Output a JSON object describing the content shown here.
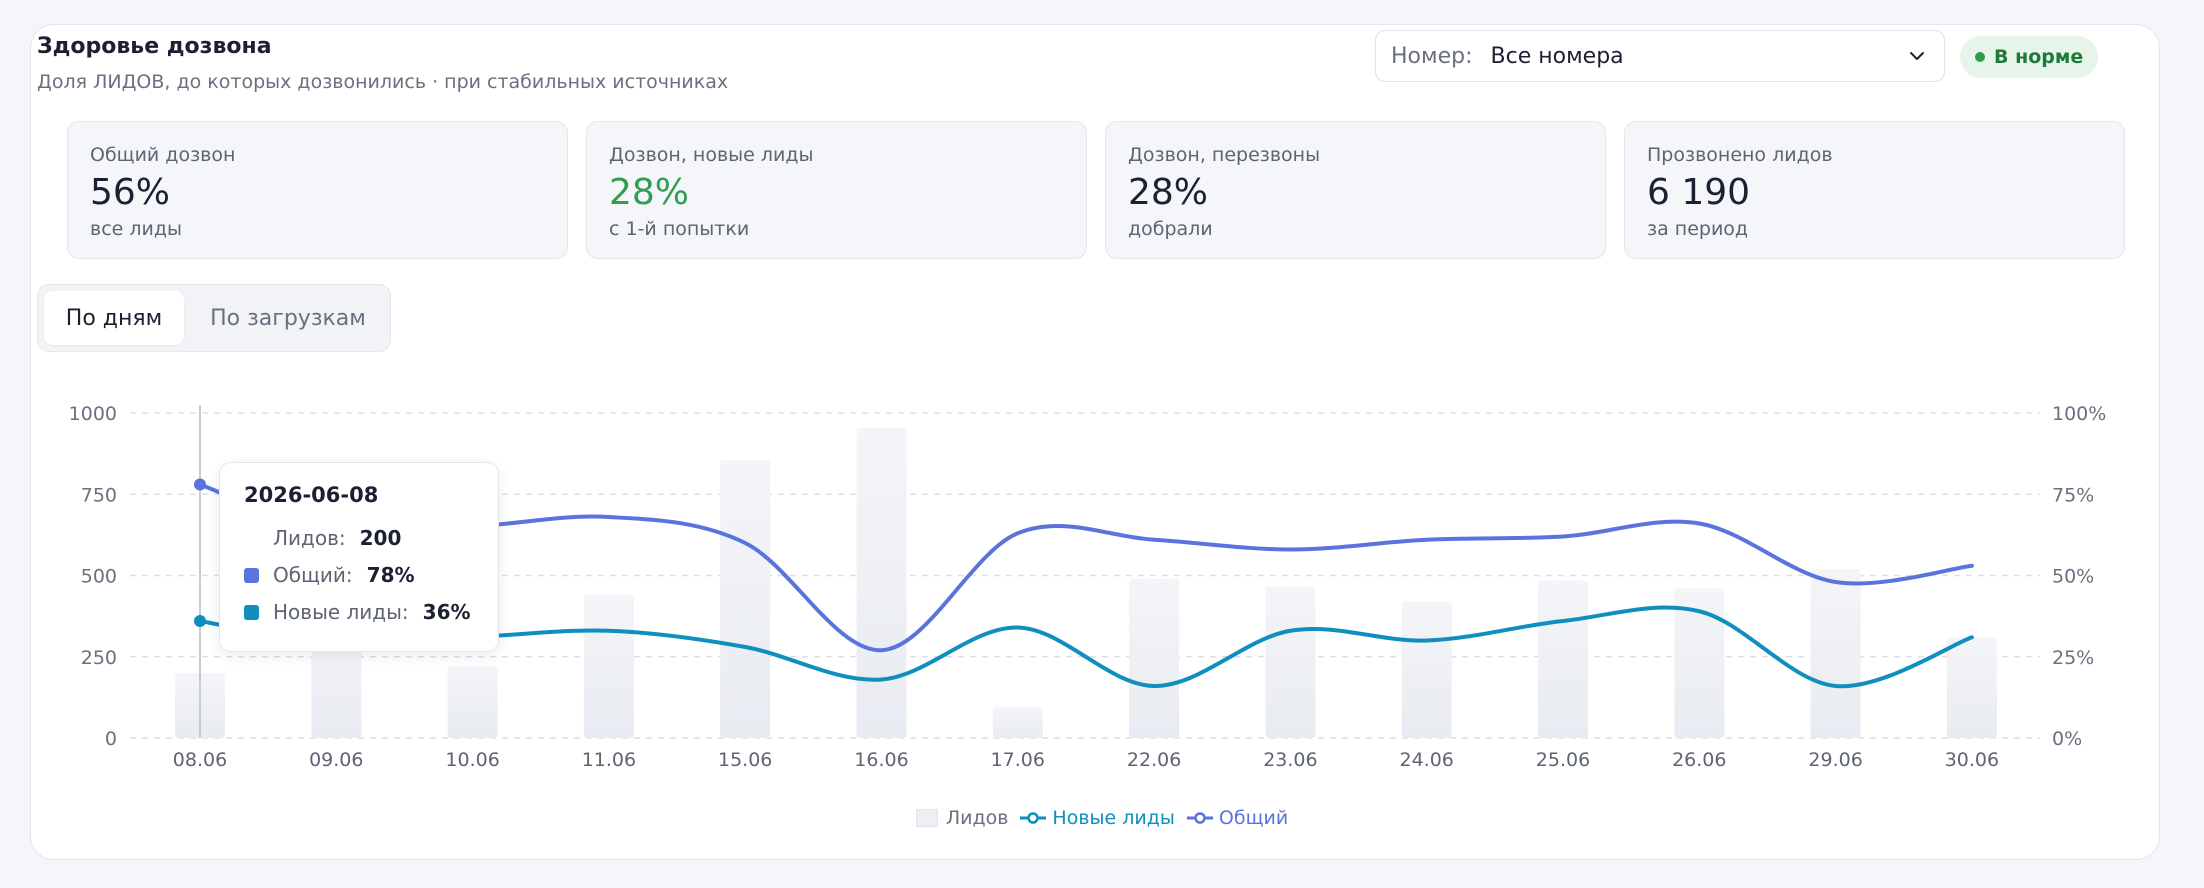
{
  "header": {
    "title": "Здоровье дозвона",
    "subtitle": "Доля ЛИДОВ, до которых дозвонились · при стабильных источниках"
  },
  "number_select": {
    "label": "Номер:",
    "value": "Все номера"
  },
  "status_badge": {
    "label": "В норме",
    "color": "#2e9e4f"
  },
  "kpis": [
    {
      "label": "Общий дозвон",
      "value": "56%",
      "sub": "все лиды"
    },
    {
      "label": "Дозвон, новые лиды",
      "value": "28%",
      "sub": "с 1-й попытки"
    },
    {
      "label": "Дозвон, перезвоны",
      "value": "28%",
      "sub": "добрали"
    },
    {
      "label": "Прозвонено лидов",
      "value": "6 190",
      "sub": "за период"
    }
  ],
  "tabs": [
    {
      "label": "По дням",
      "active": true
    },
    {
      "label": "По загрузкам",
      "active": false
    }
  ],
  "tooltip": {
    "date": "2026-06-08",
    "rows": [
      {
        "label": "Лидов:",
        "value": "200"
      },
      {
        "label": "Общий:",
        "value": "78%"
      },
      {
        "label": "Новые лиды:",
        "value": "36%"
      }
    ]
  },
  "legend": [
    {
      "label": "Лидов"
    },
    {
      "label": "Новые лиды"
    },
    {
      "label": "Общий"
    }
  ],
  "colors": {
    "total": "#5b74dd",
    "new_leads": "#0f8fbd",
    "bars": "#eef0f5"
  },
  "chart_data": {
    "type": "bar",
    "categories": [
      "08.06",
      "09.06",
      "10.06",
      "11.06",
      "15.06",
      "16.06",
      "17.06",
      "22.06",
      "23.06",
      "24.06",
      "25.06",
      "26.06",
      "29.06",
      "30.06"
    ],
    "series": [
      {
        "name": "Лидов",
        "type": "bar",
        "axis": "left",
        "values": [
          200,
          370,
          220,
          440,
          855,
          955,
          95,
          490,
          465,
          420,
          485,
          460,
          520,
          310
        ]
      },
      {
        "name": "Новые лиды",
        "type": "line",
        "axis": "right",
        "values": [
          36,
          29,
          31,
          33,
          28,
          18,
          34,
          16,
          33,
          30,
          36,
          39,
          16,
          31
        ]
      },
      {
        "name": "Общий",
        "type": "line",
        "axis": "right",
        "values": [
          78,
          63,
          65,
          68,
          60,
          27,
          63,
          61,
          58,
          61,
          62,
          66,
          48,
          53
        ]
      }
    ],
    "yticks_left": [
      "0",
      "250",
      "500",
      "750",
      "1000"
    ],
    "yticks_right": [
      "0%",
      "25%",
      "50%",
      "75%",
      "100%"
    ],
    "ylim_left": [
      0,
      1000
    ],
    "ylim_right": [
      0,
      100
    ],
    "grid": true,
    "legend_position": "bottom-center"
  }
}
